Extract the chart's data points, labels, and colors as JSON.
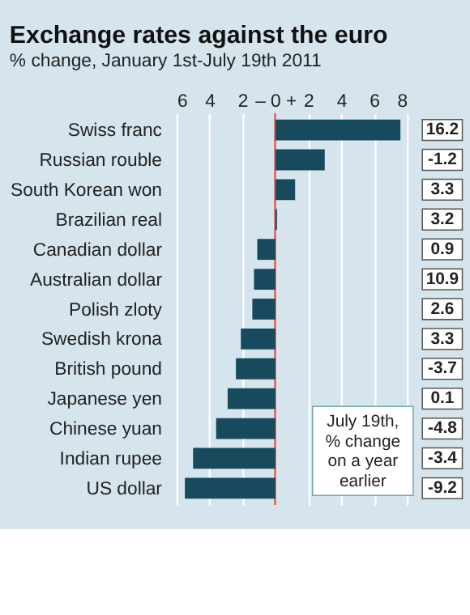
{
  "chart_data": {
    "type": "bar",
    "orientation": "horizontal",
    "title": "Exchange rates against the euro",
    "subtitle": "% change, January 1st-July 19th 2011",
    "categories": [
      "Swiss franc",
      "Russian rouble",
      "South Korean won",
      "Brazilian real",
      "Canadian dollar",
      "Australian dollar",
      "Polish zloty",
      "Swedish krona",
      "British pound",
      "Japanese yen",
      "Chinese yuan",
      "Indian rupee",
      "US dollar"
    ],
    "values": [
      7.6,
      3.0,
      1.2,
      0.1,
      -1.1,
      -1.3,
      -1.4,
      -2.1,
      -2.4,
      -2.9,
      -3.6,
      -5.0,
      -5.5
    ],
    "color": "#174a5c",
    "xlim": [
      -6,
      8
    ],
    "xticks": [
      {
        "value": -6,
        "label": "6"
      },
      {
        "value": -4,
        "label": "4"
      },
      {
        "value": -2,
        "label": "2"
      },
      {
        "value": 0,
        "label": "– 0 +"
      },
      2,
      4,
      6,
      8
    ],
    "grid": "x",
    "ref_lines": [
      {
        "axis": "x",
        "value": 0,
        "color": "#e06a6a"
      }
    ],
    "annotations": [
      "16.2",
      "-1.2",
      "3.3",
      "3.2",
      "0.9",
      "10.9",
      "2.6",
      "3.3",
      "-3.7",
      "0.1",
      "-4.8",
      "-3.4",
      "-9.2",
      "July 19th, % change on a year earlier"
    ]
  }
}
